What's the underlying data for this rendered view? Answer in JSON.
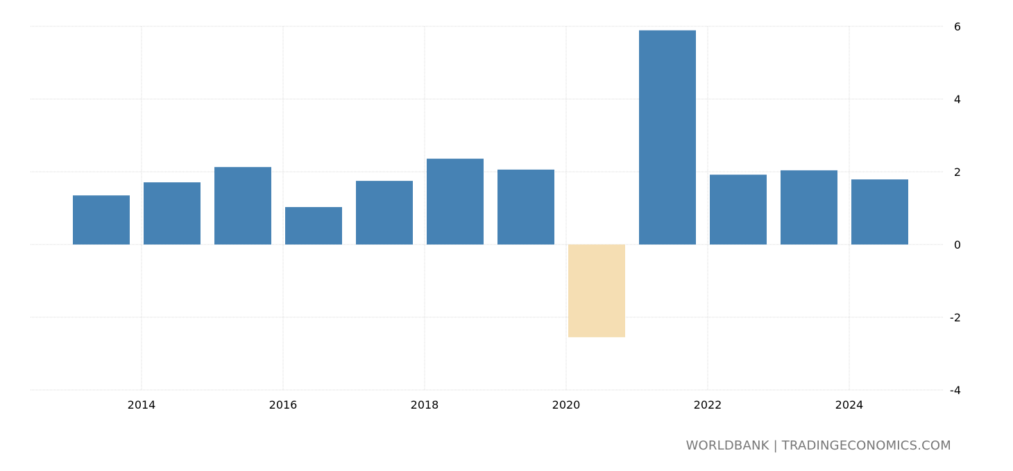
{
  "chart_data": {
    "type": "bar",
    "categories": [
      "2013",
      "2014",
      "2015",
      "2016",
      "2017",
      "2018",
      "2019",
      "2020",
      "2021",
      "2022",
      "2023",
      "2024"
    ],
    "values": [
      1.35,
      1.71,
      2.13,
      1.03,
      1.75,
      2.36,
      2.06,
      -2.55,
      5.89,
      1.92,
      2.04,
      1.79
    ],
    "ylim": [
      -4,
      6
    ],
    "yticks": [
      6,
      4,
      2,
      0,
      -2,
      -4
    ],
    "xticks": [
      "2014",
      "2016",
      "2018",
      "2020",
      "2022",
      "2024"
    ],
    "title": "",
    "xlabel": "",
    "ylabel": "",
    "grid": true,
    "colors": {
      "positive": "#4682b4",
      "negative": "#f5deb3",
      "grid": "#d9d9d9"
    }
  },
  "footer": "WORLDBANK | TRADINGECONOMICS.COM"
}
